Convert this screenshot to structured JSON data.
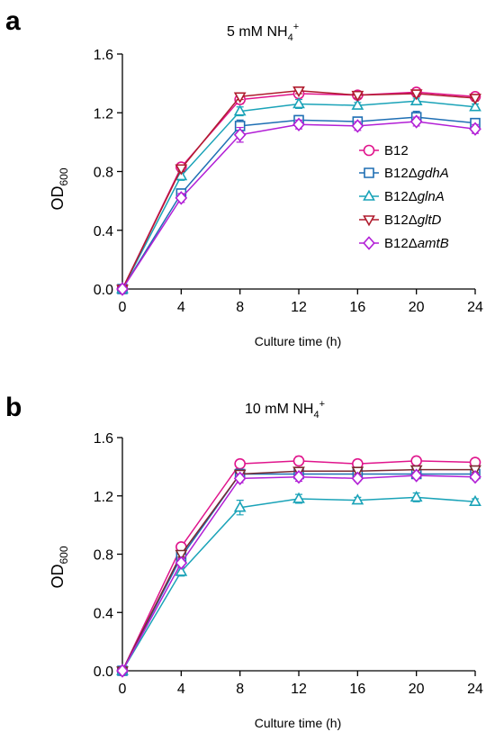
{
  "chart_data": [
    {
      "panel": "a",
      "type": "line",
      "title": "5 mM NH",
      "title_sub": "4",
      "title_sup": "+",
      "xlabel": "Culture time (h)",
      "ylabel": "OD",
      "ylabel_sub": "600",
      "x": [
        0,
        4,
        8,
        12,
        16,
        20,
        24
      ],
      "xticks": [
        "0",
        "4",
        "8",
        "12",
        "16",
        "20",
        "24"
      ],
      "yticks": [
        "0.0",
        "0.4",
        "0.8",
        "1.2",
        "1.6"
      ],
      "xlim": [
        0,
        24
      ],
      "ylim": [
        0,
        1.6
      ],
      "legend_position": "right-inside",
      "series": [
        {
          "name": "B12",
          "prefix": "B12",
          "gene": "",
          "color": "#e0148c",
          "marker": "circle",
          "values": [
            0.0,
            0.83,
            1.29,
            1.33,
            1.32,
            1.34,
            1.31
          ],
          "errors": [
            0,
            0.02,
            0.03,
            0.03,
            0.02,
            0.02,
            0.02
          ]
        },
        {
          "name": "B12ΔgdhA",
          "prefix": "B12Δ",
          "gene": "gdhA",
          "color": "#1f6fb4",
          "marker": "square",
          "values": [
            0.0,
            0.65,
            1.11,
            1.15,
            1.14,
            1.17,
            1.13
          ],
          "errors": [
            0,
            0.03,
            0.04,
            0.03,
            0.03,
            0.04,
            0.03
          ]
        },
        {
          "name": "B12ΔglnA",
          "prefix": "B12Δ",
          "gene": "glnA",
          "color": "#1aa3b8",
          "marker": "triangle-up",
          "values": [
            0.0,
            0.77,
            1.21,
            1.26,
            1.25,
            1.28,
            1.24
          ],
          "errors": [
            0,
            0.03,
            0.03,
            0.03,
            0.02,
            0.02,
            0.02
          ]
        },
        {
          "name": "B12ΔgltD",
          "prefix": "B12Δ",
          "gene": "gltD",
          "color": "#b01c2e",
          "marker": "triangle-down",
          "values": [
            0.0,
            0.82,
            1.31,
            1.35,
            1.32,
            1.33,
            1.3
          ],
          "errors": [
            0,
            0.02,
            0.02,
            0.02,
            0.02,
            0.02,
            0.02
          ]
        },
        {
          "name": "B12ΔamtB",
          "prefix": "B12Δ",
          "gene": "amtB",
          "color": "#b21fd6",
          "marker": "diamond",
          "values": [
            0.0,
            0.62,
            1.05,
            1.12,
            1.11,
            1.14,
            1.09
          ],
          "errors": [
            0,
            0.03,
            0.05,
            0.03,
            0.03,
            0.03,
            0.03
          ]
        }
      ]
    },
    {
      "panel": "b",
      "type": "line",
      "title": "10 mM NH",
      "title_sub": "4",
      "title_sup": "+",
      "xlabel": "Culture time (h)",
      "ylabel": "OD",
      "ylabel_sub": "600",
      "x": [
        0,
        4,
        8,
        12,
        16,
        20,
        24
      ],
      "xticks": [
        "0",
        "4",
        "8",
        "12",
        "16",
        "20",
        "24"
      ],
      "yticks": [
        "0.0",
        "0.4",
        "0.8",
        "1.2",
        "1.6"
      ],
      "xlim": [
        0,
        24
      ],
      "ylim": [
        0,
        1.6
      ],
      "series": [
        {
          "name": "B12",
          "color": "#e0148c",
          "marker": "circle",
          "values": [
            0.0,
            0.85,
            1.42,
            1.44,
            1.42,
            1.44,
            1.43
          ],
          "errors": [
            0,
            0.02,
            0.02,
            0.03,
            0.02,
            0.02,
            0.02
          ]
        },
        {
          "name": "B12ΔgdhA",
          "color": "#1f6fb4",
          "marker": "square",
          "values": [
            0.0,
            0.78,
            1.35,
            1.35,
            1.35,
            1.35,
            1.35
          ],
          "errors": [
            0,
            0.02,
            0.02,
            0.03,
            0.02,
            0.02,
            0.02
          ]
        },
        {
          "name": "B12ΔglnA",
          "color": "#1aa3b8",
          "marker": "triangle-up",
          "values": [
            0.0,
            0.68,
            1.12,
            1.18,
            1.17,
            1.19,
            1.16
          ],
          "errors": [
            0,
            0.03,
            0.05,
            0.03,
            0.02,
            0.03,
            0.02
          ]
        },
        {
          "name": "B12ΔgltD",
          "color": "#7a2a30",
          "marker": "triangle-down",
          "values": [
            0.0,
            0.8,
            1.35,
            1.37,
            1.37,
            1.38,
            1.38
          ],
          "errors": [
            0,
            0.02,
            0.02,
            0.02,
            0.02,
            0.02,
            0.02
          ]
        },
        {
          "name": "B12ΔamtB",
          "color": "#b21fd6",
          "marker": "diamond",
          "values": [
            0.0,
            0.74,
            1.32,
            1.33,
            1.32,
            1.34,
            1.33
          ],
          "errors": [
            0,
            0.03,
            0.03,
            0.03,
            0.02,
            0.02,
            0.02
          ]
        }
      ]
    }
  ]
}
